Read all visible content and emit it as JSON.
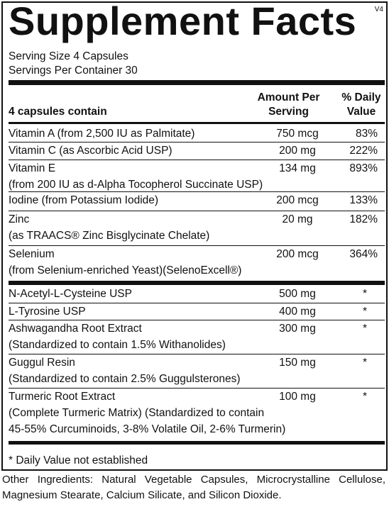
{
  "header": {
    "title": "Supplement Facts",
    "version": "V4",
    "serving_size": "Serving Size 4 Capsules",
    "servings_per_container": "Servings Per Container 30"
  },
  "table": {
    "columns": [
      "4 capsules contain",
      "Amount Per Serving",
      "% Daily Value"
    ],
    "rows": [
      {
        "name": [
          "Vitamin A (from 2,500 IU as Palmitate)"
        ],
        "amount": "750 mcg",
        "dv": "83%"
      },
      {
        "name": [
          "Vitamin C (as Ascorbic Acid USP)"
        ],
        "amount": "200 mg",
        "dv": "222%"
      },
      {
        "name": [
          "Vitamin E",
          "(from 200 IU as d-Alpha Tocopherol Succinate USP)"
        ],
        "amount": "134 mg",
        "dv": "893%"
      },
      {
        "name": [
          "Iodine (from Potassium Iodide)"
        ],
        "amount": "200 mcg",
        "dv": "133%"
      },
      {
        "name": [
          "Zinc",
          "(as TRAACS® Zinc Bisglycinate Chelate)"
        ],
        "amount": "20 mg",
        "dv": "182%"
      },
      {
        "name": [
          "Selenium",
          "(from Selenium-enriched Yeast)(SelenoExcell®)"
        ],
        "amount": "200 mcg",
        "dv": "364%"
      },
      {
        "name": [
          "N-Acetyl-L-Cysteine USP"
        ],
        "amount": "500 mg",
        "dv": "*"
      },
      {
        "name": [
          "L-Tyrosine USP"
        ],
        "amount": "400 mg",
        "dv": "*"
      },
      {
        "name": [
          "Ashwagandha Root Extract",
          "(Standardized to contain 1.5% Withanolides)"
        ],
        "amount": "300 mg",
        "dv": "*"
      },
      {
        "name": [
          "Guggul Resin",
          "(Standardized to contain 2.5% Guggulsterones)"
        ],
        "amount": "150 mg",
        "dv": "*"
      },
      {
        "name": [
          "Turmeric Root Extract",
          "(Complete Turmeric Matrix) (Standardized to contain",
          "45-55% Curcuminoids, 3-8% Volatile Oil, 2-6% Turmerin)"
        ],
        "amount": "100 mg",
        "dv": "*"
      }
    ]
  },
  "footnote": "* Daily Value not established",
  "other_ingredients": "Other Ingredients: Natural Vegetable Capsules, Microcrystalline Cellulose, Magnesium Stearate, Calcium Silicate, and Silicon Dioxide."
}
